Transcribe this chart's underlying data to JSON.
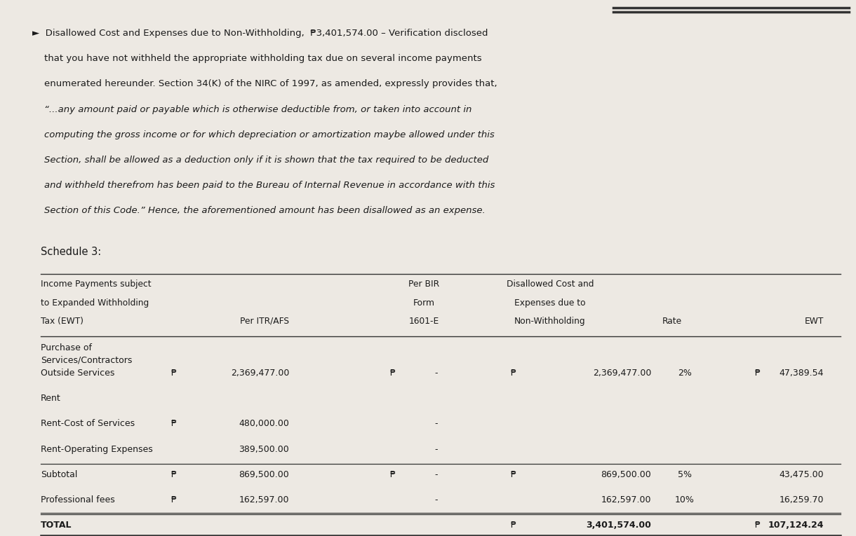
{
  "bg_color": "#ede9e3",
  "text_color": "#1a1a1a",
  "header_lines": [
    [
      "►  Disallowed Cost and Expenses due to Non-Withholding,  ₱3,401,574.00 – Verification disclosed",
      false
    ],
    [
      "    that you have not withheld the appropriate withholding tax due on several income payments",
      false
    ],
    [
      "    enumerated hereunder. Section 34(K) of the NIRC of 1997, as amended, expressly provides that,",
      false
    ],
    [
      "    “...any amount paid or payable which is otherwise deductible from, or taken into account in",
      true
    ],
    [
      "    computing the gross income or for which depreciation or amortization maybe allowed under this",
      true
    ],
    [
      "    Section, shall be allowed as a deduction only if it is shown that the tax required to be deducted",
      true
    ],
    [
      "    and withheld therefrom has been paid to the Bureau of Internal Revenue in accordance with this",
      true
    ],
    [
      "    Section of this Code.” Hence, the aforementioned amount has been disallowed as an expense.",
      true
    ]
  ],
  "schedule_label": "Schedule 3:",
  "col_headers": {
    "col1": [
      "Income Payments subject",
      "to Expanded Withholding",
      "Tax (EWT)"
    ],
    "col2": [
      "",
      "",
      "Per ITR/AFS"
    ],
    "col3": [
      "Per BIR",
      "Form",
      "1601-E"
    ],
    "col4": [
      "Disallowed Cost and",
      "Expenses due to",
      "Non-Withholding"
    ],
    "col5": [
      "",
      "",
      "Rate"
    ],
    "col6": [
      "",
      "",
      "EWT"
    ]
  },
  "rows": [
    {
      "label": "Purchase of",
      "label2": "Services/Contractors",
      "itr": "",
      "bir": "",
      "disallowed": "",
      "rate": "",
      "ewt": "",
      "peso_itr": false,
      "peso_bir": false,
      "peso_dis": false,
      "peso_ewt": false,
      "bold": false,
      "underline_above": false,
      "underline_below": false,
      "double_below": false
    },
    {
      "label": "Outside Services",
      "label2": "",
      "itr": "2,369,477.00",
      "bir": "-",
      "disallowed": "2,369,477.00",
      "rate": "2%",
      "ewt": "47,389.54",
      "peso_itr": true,
      "peso_bir": true,
      "peso_dis": true,
      "peso_ewt": true,
      "bold": false,
      "underline_above": false,
      "underline_below": false,
      "double_below": false
    },
    {
      "label": "Rent",
      "label2": "",
      "itr": "",
      "bir": "",
      "disallowed": "",
      "rate": "",
      "ewt": "",
      "peso_itr": false,
      "peso_bir": false,
      "peso_dis": false,
      "peso_ewt": false,
      "bold": false,
      "underline_above": false,
      "underline_below": false,
      "double_below": false
    },
    {
      "label": "Rent-Cost of Services",
      "label2": "",
      "itr": "480,000.00",
      "bir": "-",
      "disallowed": "",
      "rate": "",
      "ewt": "",
      "peso_itr": true,
      "peso_bir": false,
      "peso_dis": false,
      "peso_ewt": false,
      "bold": false,
      "underline_above": false,
      "underline_below": false,
      "double_below": false
    },
    {
      "label": "Rent-Operating Expenses",
      "label2": "",
      "itr": "389,500.00",
      "bir": "-",
      "disallowed": "",
      "rate": "",
      "ewt": "",
      "peso_itr": false,
      "peso_bir": false,
      "peso_dis": false,
      "peso_ewt": false,
      "bold": false,
      "underline_above": false,
      "underline_below": false,
      "double_below": false
    },
    {
      "label": "Subtotal",
      "label2": "",
      "itr": "869,500.00",
      "bir": "-",
      "disallowed": "869,500.00",
      "rate": "5%",
      "ewt": "43,475.00",
      "peso_itr": true,
      "peso_bir": true,
      "peso_dis": true,
      "peso_ewt": false,
      "bold": false,
      "underline_above": true,
      "underline_below": false,
      "double_below": false
    },
    {
      "label": "Professional fees",
      "label2": "",
      "itr": "162,597.00",
      "bir": "-",
      "disallowed": "162,597.00",
      "rate": "10%",
      "ewt": "16,259.70",
      "peso_itr": true,
      "peso_bir": false,
      "peso_dis": false,
      "peso_ewt": false,
      "bold": false,
      "underline_above": false,
      "underline_below": true,
      "double_below": false
    },
    {
      "label": "TOTAL",
      "label2": "",
      "itr": "",
      "bir": "",
      "disallowed": "3,401,574.00",
      "rate": "",
      "ewt": "107,124.24",
      "peso_itr": false,
      "peso_bir": false,
      "peso_dis": true,
      "peso_ewt": true,
      "bold": true,
      "underline_above": true,
      "underline_below": false,
      "double_below": true
    }
  ]
}
